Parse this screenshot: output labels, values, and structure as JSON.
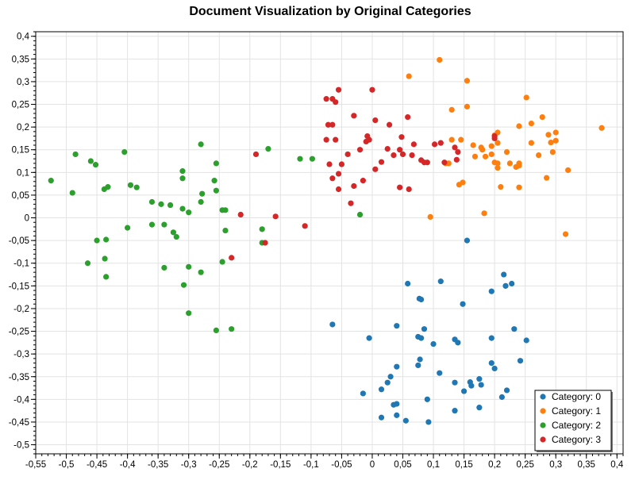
{
  "chart_data": {
    "type": "scatter",
    "title": "Document Visualization by Original Categories",
    "xlabel": "",
    "ylabel": "",
    "xlim": [
      -0.55,
      0.41
    ],
    "ylim": [
      -0.52,
      0.41
    ],
    "x_ticks": [
      "-0,55",
      "-0,5",
      "-0,45",
      "-0,4",
      "-0,35",
      "-0,3",
      "-0,25",
      "-0,2",
      "-0,15",
      "-0,1",
      "-0,05",
      "0",
      "0,05",
      "0,1",
      "0,15",
      "0,2",
      "0,25",
      "0,3",
      "0,35",
      "0,4"
    ],
    "x_tick_values": [
      -0.55,
      -0.5,
      -0.45,
      -0.4,
      -0.35,
      -0.3,
      -0.25,
      -0.2,
      -0.15,
      -0.1,
      -0.05,
      0,
      0.05,
      0.1,
      0.15,
      0.2,
      0.25,
      0.3,
      0.35,
      0.4
    ],
    "y_ticks": [
      "0,4",
      "0,35",
      "0,3",
      "0,25",
      "0,2",
      "0,15",
      "0,1",
      "0,05",
      "0",
      "-0,05",
      "-0,1",
      "-0,15",
      "-0,2",
      "-0,25",
      "-0,3",
      "-0,35",
      "-0,4",
      "-0,45",
      "-0,5"
    ],
    "y_tick_values": [
      0.4,
      0.35,
      0.3,
      0.25,
      0.2,
      0.15,
      0.1,
      0.05,
      0,
      -0.05,
      -0.1,
      -0.15,
      -0.2,
      -0.25,
      -0.3,
      -0.35,
      -0.4,
      -0.45,
      -0.5
    ],
    "grid": true,
    "legend_position": "bottom-right",
    "series": [
      {
        "name": "Category: 0",
        "color": "#1f77b4",
        "points": [
          [
            0.155,
            -0.05
          ],
          [
            0.215,
            -0.125
          ],
          [
            0.218,
            -0.15
          ],
          [
            0.228,
            -0.145
          ],
          [
            0.112,
            -0.14
          ],
          [
            0.058,
            -0.145
          ],
          [
            0.08,
            -0.18
          ],
          [
            0.077,
            -0.178
          ],
          [
            0.148,
            -0.19
          ],
          [
            0.175,
            -0.355
          ],
          [
            0.195,
            -0.162
          ],
          [
            -0.065,
            -0.235
          ],
          [
            0.04,
            -0.238
          ],
          [
            -0.005,
            -0.265
          ],
          [
            0.075,
            -0.262
          ],
          [
            0.085,
            -0.245
          ],
          [
            0.08,
            -0.265
          ],
          [
            0.1,
            -0.278
          ],
          [
            0.135,
            -0.268
          ],
          [
            0.14,
            -0.275
          ],
          [
            0.195,
            -0.265
          ],
          [
            0.232,
            -0.245
          ],
          [
            0.252,
            -0.27
          ],
          [
            0.04,
            -0.328
          ],
          [
            0.078,
            -0.312
          ],
          [
            0.075,
            -0.325
          ],
          [
            0.11,
            -0.342
          ],
          [
            0.195,
            -0.32
          ],
          [
            0.2,
            -0.332
          ],
          [
            0.242,
            -0.315
          ],
          [
            0.03,
            -0.35
          ],
          [
            0.025,
            -0.363
          ],
          [
            0.015,
            -0.378
          ],
          [
            0.135,
            -0.363
          ],
          [
            0.15,
            -0.382
          ],
          [
            0.16,
            -0.362
          ],
          [
            0.162,
            -0.37
          ],
          [
            0.178,
            -0.368
          ],
          [
            0.22,
            -0.38
          ],
          [
            0.212,
            -0.395
          ],
          [
            -0.015,
            -0.387
          ],
          [
            0.09,
            -0.4
          ],
          [
            0.035,
            -0.412
          ],
          [
            0.04,
            -0.41
          ],
          [
            0.175,
            -0.418
          ],
          [
            0.135,
            -0.425
          ],
          [
            0.04,
            -0.435
          ],
          [
            0.015,
            -0.44
          ],
          [
            0.055,
            -0.447
          ],
          [
            0.092,
            -0.45
          ]
        ]
      },
      {
        "name": "Category: 1",
        "color": "#ff7f0e",
        "points": [
          [
            0.11,
            0.348
          ],
          [
            0.06,
            0.312
          ],
          [
            0.155,
            0.302
          ],
          [
            0.252,
            0.265
          ],
          [
            0.155,
            0.245
          ],
          [
            0.13,
            0.238
          ],
          [
            0.278,
            0.222
          ],
          [
            0.26,
            0.208
          ],
          [
            0.24,
            0.202
          ],
          [
            0.375,
            0.198
          ],
          [
            0.205,
            0.188
          ],
          [
            0.2,
            0.182
          ],
          [
            0.3,
            0.188
          ],
          [
            0.288,
            0.183
          ],
          [
            0.26,
            0.165
          ],
          [
            0.292,
            0.166
          ],
          [
            0.3,
            0.17
          ],
          [
            0.145,
            0.172
          ],
          [
            0.13,
            0.172
          ],
          [
            0.165,
            0.16
          ],
          [
            0.178,
            0.155
          ],
          [
            0.195,
            0.158
          ],
          [
            0.205,
            0.165
          ],
          [
            0.18,
            0.15
          ],
          [
            0.22,
            0.145
          ],
          [
            0.195,
            0.14
          ],
          [
            0.295,
            0.145
          ],
          [
            0.185,
            0.135
          ],
          [
            0.272,
            0.138
          ],
          [
            0.168,
            0.135
          ],
          [
            0.12,
            0.12
          ],
          [
            0.125,
            0.12
          ],
          [
            0.225,
            0.12
          ],
          [
            0.2,
            0.122
          ],
          [
            0.205,
            0.12
          ],
          [
            0.24,
            0.12
          ],
          [
            0.24,
            0.115
          ],
          [
            0.205,
            0.11
          ],
          [
            0.32,
            0.105
          ],
          [
            0.235,
            0.112
          ],
          [
            0.285,
            0.088
          ],
          [
            0.142,
            0.073
          ],
          [
            0.148,
            0.078
          ],
          [
            0.21,
            0.068
          ],
          [
            0.24,
            0.067
          ],
          [
            0.095,
            0.002
          ],
          [
            0.183,
            0.01
          ],
          [
            0.316,
            -0.036
          ]
        ]
      },
      {
        "name": "Category: 2",
        "color": "#2ca02c",
        "points": [
          [
            -0.525,
            0.082
          ],
          [
            -0.49,
            0.055
          ],
          [
            -0.485,
            0.14
          ],
          [
            -0.46,
            0.125
          ],
          [
            -0.452,
            0.117
          ],
          [
            -0.405,
            0.145
          ],
          [
            -0.28,
            0.162
          ],
          [
            -0.17,
            0.152
          ],
          [
            -0.255,
            0.12
          ],
          [
            -0.31,
            0.103
          ],
          [
            -0.31,
            0.087
          ],
          [
            -0.395,
            0.072
          ],
          [
            -0.385,
            0.067
          ],
          [
            -0.258,
            0.082
          ],
          [
            -0.255,
            0.06
          ],
          [
            -0.278,
            0.053
          ],
          [
            -0.438,
            0.063
          ],
          [
            -0.432,
            0.068
          ],
          [
            -0.36,
            0.035
          ],
          [
            -0.345,
            0.03
          ],
          [
            -0.33,
            0.028
          ],
          [
            -0.31,
            0.02
          ],
          [
            -0.3,
            0.012
          ],
          [
            -0.28,
            0.035
          ],
          [
            -0.245,
            0.017
          ],
          [
            -0.24,
            0.017
          ],
          [
            -0.118,
            0.13
          ],
          [
            -0.098,
            0.13
          ],
          [
            -0.02,
            0.007
          ],
          [
            -0.36,
            -0.015
          ],
          [
            -0.34,
            -0.015
          ],
          [
            -0.4,
            -0.022
          ],
          [
            -0.24,
            -0.028
          ],
          [
            -0.18,
            -0.025
          ],
          [
            -0.325,
            -0.032
          ],
          [
            -0.32,
            -0.042
          ],
          [
            -0.45,
            -0.05
          ],
          [
            -0.435,
            -0.048
          ],
          [
            -0.18,
            -0.055
          ],
          [
            -0.437,
            -0.09
          ],
          [
            -0.465,
            -0.1
          ],
          [
            -0.34,
            -0.11
          ],
          [
            -0.3,
            -0.108
          ],
          [
            -0.28,
            -0.12
          ],
          [
            -0.245,
            -0.097
          ],
          [
            -0.435,
            -0.13
          ],
          [
            -0.308,
            -0.148
          ],
          [
            -0.3,
            -0.21
          ],
          [
            -0.23,
            -0.245
          ],
          [
            -0.255,
            -0.248
          ]
        ]
      },
      {
        "name": "Category: 3",
        "color": "#d62728",
        "points": [
          [
            0.0,
            0.282
          ],
          [
            -0.055,
            0.282
          ],
          [
            -0.075,
            0.262
          ],
          [
            -0.065,
            0.262
          ],
          [
            -0.06,
            0.255
          ],
          [
            -0.03,
            0.225
          ],
          [
            0.058,
            0.222
          ],
          [
            0.005,
            0.215
          ],
          [
            -0.065,
            0.205
          ],
          [
            -0.072,
            0.205
          ],
          [
            0.028,
            0.205
          ],
          [
            -0.008,
            0.18
          ],
          [
            -0.005,
            0.172
          ],
          [
            -0.01,
            0.168
          ],
          [
            -0.075,
            0.172
          ],
          [
            -0.06,
            0.172
          ],
          [
            0.048,
            0.178
          ],
          [
            0.068,
            0.162
          ],
          [
            0.102,
            0.162
          ],
          [
            0.112,
            0.165
          ],
          [
            0.135,
            0.155
          ],
          [
            0.025,
            0.152
          ],
          [
            0.045,
            0.15
          ],
          [
            0.035,
            0.138
          ],
          [
            0.05,
            0.14
          ],
          [
            -0.02,
            0.15
          ],
          [
            0.2,
            0.18
          ],
          [
            0.2,
            0.175
          ],
          [
            0.14,
            0.145
          ],
          [
            -0.19,
            0.14
          ],
          [
            -0.04,
            0.14
          ],
          [
            -0.07,
            0.118
          ],
          [
            -0.05,
            0.118
          ],
          [
            0.015,
            0.123
          ],
          [
            0.08,
            0.127
          ],
          [
            0.085,
            0.122
          ],
          [
            0.09,
            0.122
          ],
          [
            0.118,
            0.122
          ],
          [
            0.138,
            0.128
          ],
          [
            0.065,
            0.138
          ],
          [
            -0.055,
            0.097
          ],
          [
            -0.065,
            0.087
          ],
          [
            -0.015,
            0.082
          ],
          [
            0.005,
            0.107
          ],
          [
            -0.03,
            0.07
          ],
          [
            -0.055,
            0.063
          ],
          [
            0.045,
            0.067
          ],
          [
            0.06,
            0.063
          ],
          [
            -0.035,
            0.032
          ],
          [
            -0.215,
            0.007
          ],
          [
            -0.158,
            0.003
          ],
          [
            -0.11,
            -0.018
          ],
          [
            -0.175,
            -0.055
          ],
          [
            -0.23,
            -0.088
          ]
        ]
      }
    ]
  }
}
